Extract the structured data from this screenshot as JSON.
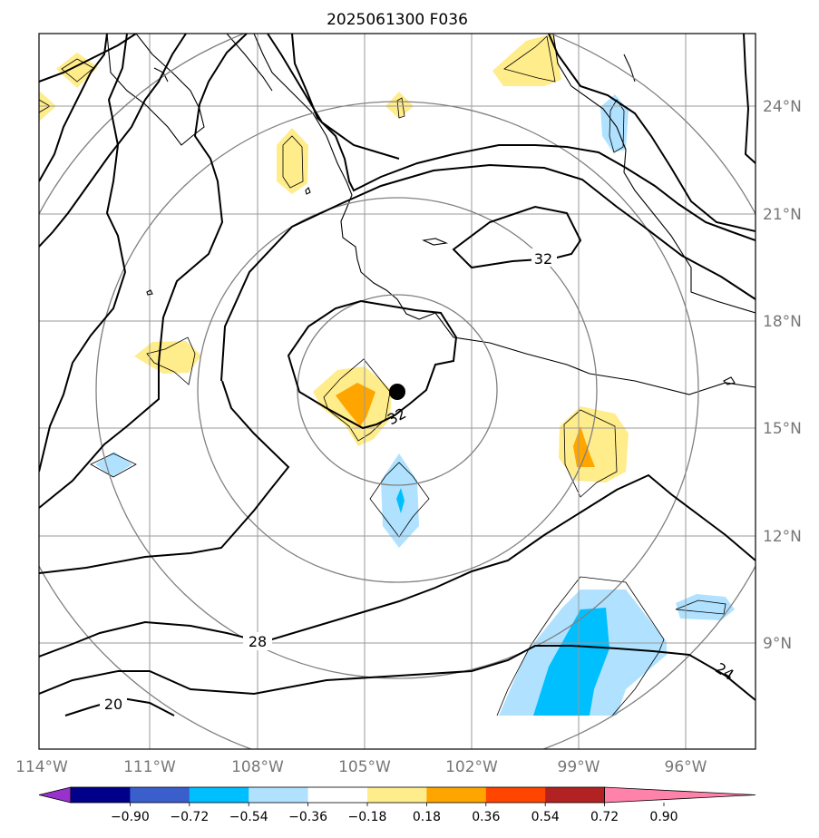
{
  "title": "2025061300 F036",
  "lon_labels": [
    "114°W",
    "111°W",
    "108°W",
    "105°W",
    "102°W",
    "99°W",
    "96°W"
  ],
  "lat_labels": [
    "24°N",
    "21°N",
    "18°N",
    "15°N",
    "12°N",
    "9°N"
  ],
  "contour_labels": [
    "32",
    "32",
    "28",
    "24",
    "20"
  ],
  "colorbar": {
    "levels": [
      "−0.90",
      "−0.72",
      "−0.54",
      "−0.36",
      "−0.18",
      "0.18",
      "0.36",
      "0.54",
      "0.72",
      "0.90"
    ],
    "colors": [
      "#9932cc",
      "#00008b",
      "#3a5fcd",
      "#00bfff",
      "#b0e2ff",
      "#ffffff",
      "#ffec8b",
      "#ffa500",
      "#ff4500",
      "#b22222",
      "#ff82ab"
    ]
  },
  "storm_center": {
    "lon": -104.1,
    "lat": 16.0
  }
}
